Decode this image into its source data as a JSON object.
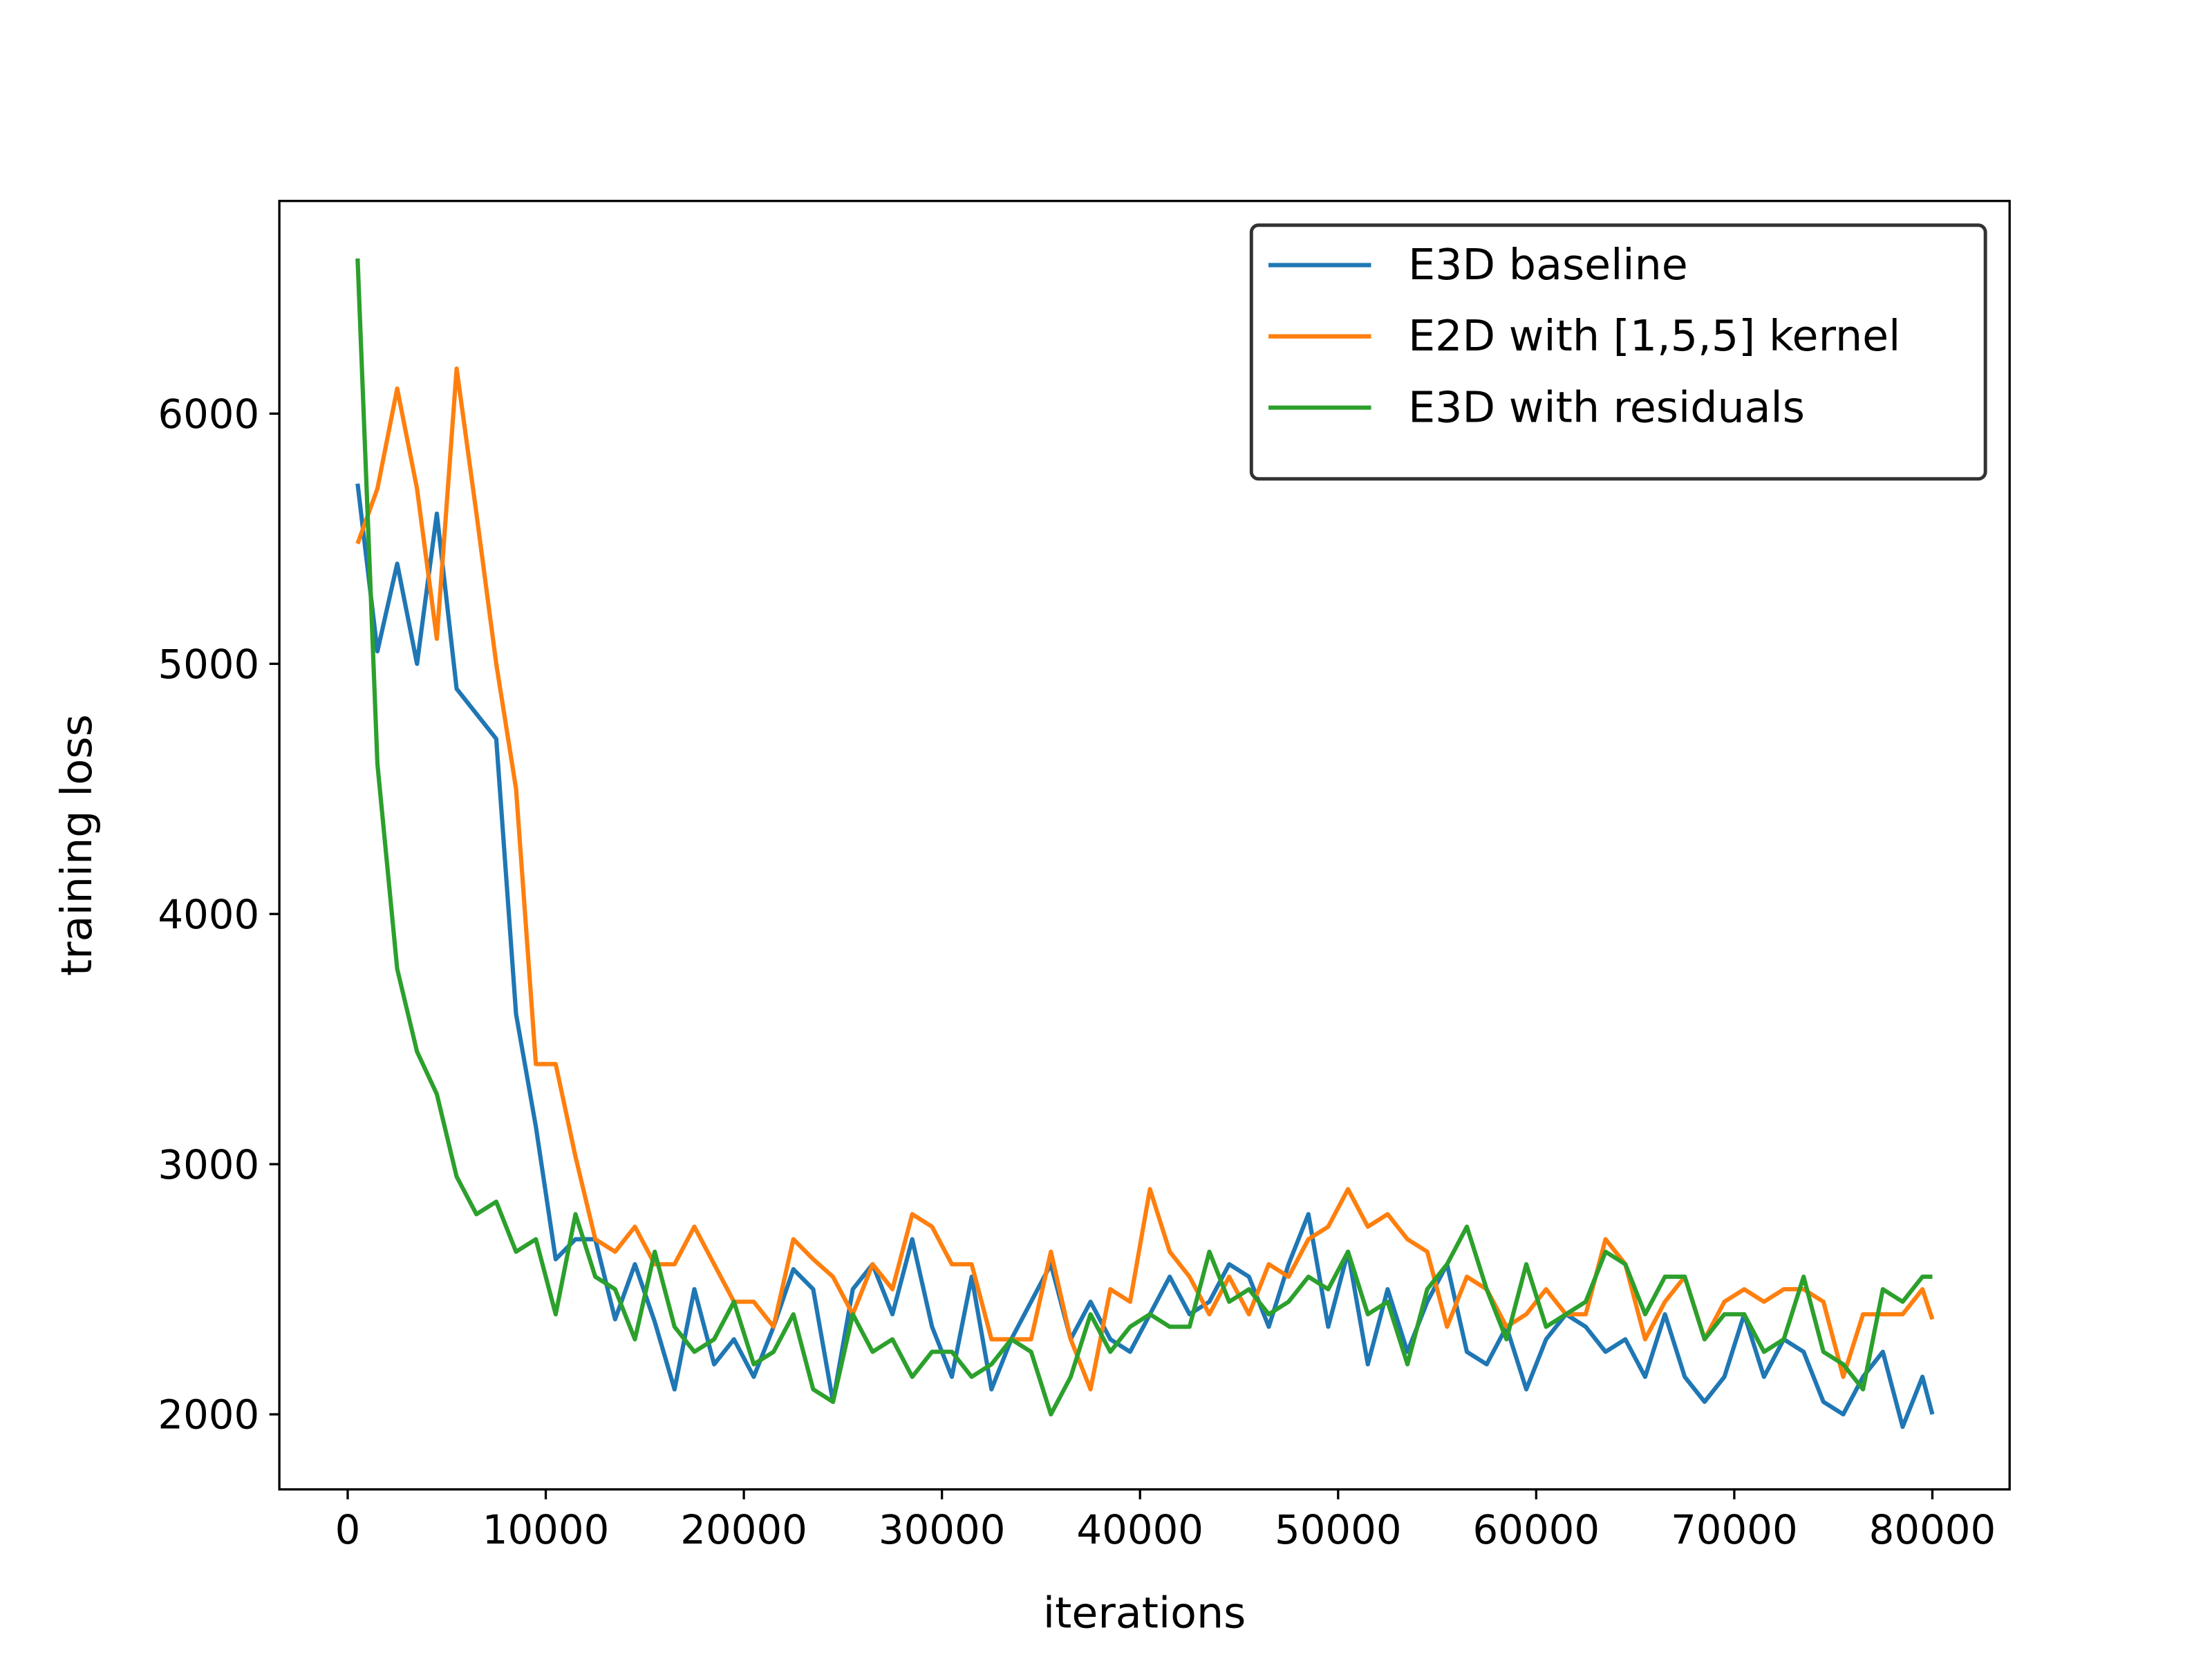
{
  "chart_data": {
    "type": "line",
    "xlabel": "iterations",
    "ylabel": "training loss",
    "x": [
      500,
      1500,
      2500,
      3500,
      4500,
      5500,
      6500,
      7500,
      8500,
      9500,
      10500,
      11500,
      12500,
      13500,
      14500,
      15500,
      16500,
      17500,
      18500,
      19500,
      20500,
      21500,
      22500,
      23500,
      24500,
      25500,
      26500,
      27500,
      28500,
      29500,
      30500,
      31500,
      32500,
      33500,
      34500,
      35500,
      36500,
      37500,
      38500,
      39500,
      40500,
      41500,
      42500,
      43500,
      44500,
      45500,
      46500,
      47500,
      48500,
      49500,
      50500,
      51500,
      52500,
      53500,
      54500,
      55500,
      56500,
      57500,
      58500,
      59500,
      60500,
      61500,
      62500,
      63500,
      64500,
      65500,
      66500,
      67500,
      68500,
      69500,
      70500,
      71500,
      72500,
      73500,
      74500,
      75500,
      76500,
      77500,
      78500,
      79500,
      80000
    ],
    "series": [
      {
        "name": "E3D baseline",
        "color": "#1f77b4",
        "values": [
          5720,
          5050,
          5400,
          5000,
          5600,
          4900,
          4800,
          4700,
          3600,
          3150,
          2620,
          2700,
          2700,
          2380,
          2600,
          2370,
          2100,
          2500,
          2200,
          2300,
          2150,
          2350,
          2580,
          2500,
          2050,
          2500,
          2600,
          2400,
          2700,
          2350,
          2150,
          2550,
          2100,
          2300,
          2450,
          2600,
          2300,
          2450,
          2300,
          2250,
          2400,
          2550,
          2400,
          2450,
          2600,
          2550,
          2350,
          2600,
          2800,
          2350,
          2650,
          2200,
          2500,
          2250,
          2450,
          2600,
          2250,
          2200,
          2350,
          2100,
          2300,
          2400,
          2350,
          2250,
          2300,
          2150,
          2400,
          2150,
          2050,
          2150,
          2400,
          2150,
          2300,
          2250,
          2050,
          2000,
          2150,
          2250,
          1950,
          2150,
          2000
        ]
      },
      {
        "name": "E2D with [1,5,5] kernel",
        "color": "#ff7f0e",
        "values": [
          5480,
          5700,
          6100,
          5700,
          5100,
          6180,
          5600,
          5000,
          4500,
          3400,
          3400,
          3030,
          2700,
          2650,
          2750,
          2600,
          2600,
          2750,
          2600,
          2450,
          2450,
          2350,
          2700,
          2620,
          2550,
          2400,
          2600,
          2500,
          2800,
          2750,
          2600,
          2600,
          2300,
          2300,
          2300,
          2650,
          2300,
          2100,
          2500,
          2450,
          2900,
          2650,
          2550,
          2400,
          2550,
          2400,
          2600,
          2550,
          2700,
          2750,
          2900,
          2750,
          2800,
          2700,
          2650,
          2350,
          2550,
          2500,
          2350,
          2400,
          2500,
          2400,
          2400,
          2700,
          2600,
          2300,
          2450,
          2550,
          2300,
          2450,
          2500,
          2450,
          2500,
          2500,
          2450,
          2150,
          2400,
          2400,
          2400,
          2500,
          2380
        ]
      },
      {
        "name": "E3D with residuals",
        "color": "#2ca02c",
        "values": [
          6620,
          4600,
          3780,
          3450,
          3280,
          2950,
          2800,
          2850,
          2650,
          2700,
          2400,
          2800,
          2550,
          2500,
          2300,
          2650,
          2350,
          2250,
          2300,
          2450,
          2200,
          2250,
          2400,
          2100,
          2050,
          2400,
          2250,
          2300,
          2150,
          2250,
          2250,
          2150,
          2200,
          2300,
          2250,
          2000,
          2150,
          2400,
          2250,
          2350,
          2400,
          2350,
          2350,
          2650,
          2450,
          2500,
          2400,
          2450,
          2550,
          2500,
          2650,
          2400,
          2450,
          2200,
          2500,
          2600,
          2750,
          2500,
          2300,
          2600,
          2350,
          2400,
          2450,
          2650,
          2600,
          2400,
          2550,
          2550,
          2300,
          2400,
          2400,
          2250,
          2300,
          2550,
          2250,
          2200,
          2100,
          2500,
          2450,
          2550,
          2550
        ]
      }
    ],
    "xlim": [
      -3450,
      83900
    ],
    "ylim": [
      1700,
      6850
    ],
    "xticks": [
      0,
      10000,
      20000,
      30000,
      40000,
      50000,
      60000,
      70000,
      80000
    ],
    "yticks": [
      2000,
      3000,
      4000,
      5000,
      6000
    ],
    "legend": "upper right",
    "grid": false
  }
}
